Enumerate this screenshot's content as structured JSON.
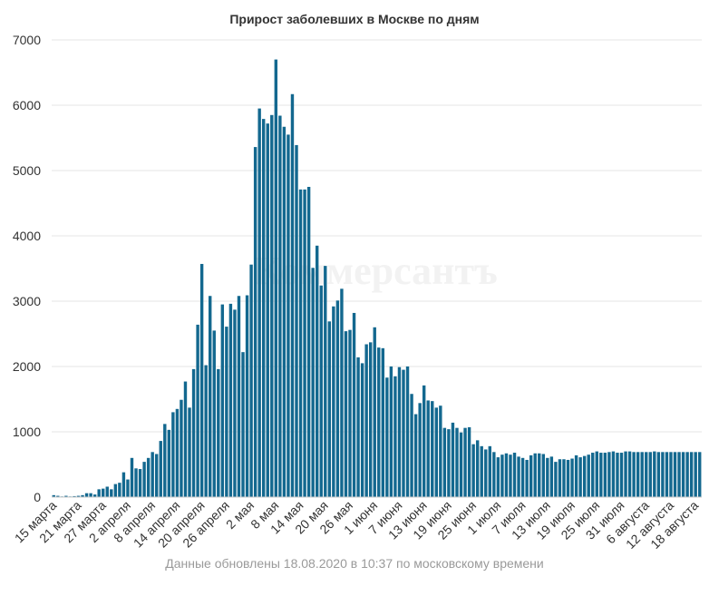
{
  "chart_data": {
    "type": "bar",
    "title": "Прирост заболевших в Москве по дням",
    "footnote": "Данные обновлены 18.08.2020 в 10:37 по московскому времени",
    "watermark": "Коммерсантъ",
    "start_date": "2020-03-15",
    "ylim": [
      0,
      7000
    ],
    "yticks": [
      0,
      1000,
      2000,
      3000,
      4000,
      5000,
      6000,
      7000
    ],
    "ytick_labels": [
      "0",
      "1000",
      "2000",
      "3000",
      "4000",
      "5000",
      "6000",
      "7000"
    ],
    "grid": true,
    "xtick_labels": [
      "15 марта",
      "21 марта",
      "27 марта",
      "2 апреля",
      "8 апреля",
      "14 апреля",
      "20 апреля",
      "26 апреля",
      "2 мая",
      "8 мая",
      "14 мая",
      "20 мая",
      "26 мая",
      "1 июня",
      "7 июня",
      "13 июня",
      "19 июня",
      "25 июня",
      "1 июля",
      "7 июля",
      "13 июля",
      "19 июля",
      "25 июля",
      "31 июля",
      "6 августа",
      "12 августа",
      "18 августа"
    ],
    "values": [
      30,
      20,
      10,
      20,
      10,
      15,
      20,
      30,
      60,
      60,
      40,
      120,
      130,
      160,
      120,
      200,
      220,
      380,
      270,
      600,
      440,
      430,
      540,
      600,
      690,
      660,
      860,
      1120,
      1030,
      1300,
      1350,
      1490,
      1770,
      1370,
      1960,
      2640,
      3570,
      2020,
      3080,
      2550,
      1960,
      2950,
      2610,
      2960,
      2870,
      3080,
      2220,
      3090,
      3560,
      5360,
      5950,
      5790,
      5720,
      5850,
      6700,
      5840,
      5670,
      5550,
      6170,
      5390,
      4710,
      4710,
      4750,
      3510,
      3850,
      3240,
      3540,
      2690,
      2920,
      3010,
      3190,
      2540,
      2560,
      2820,
      2140,
      2050,
      2340,
      2370,
      2600,
      2290,
      2280,
      1830,
      2000,
      1850,
      1990,
      1950,
      2000,
      1580,
      1270,
      1440,
      1710,
      1480,
      1470,
      1370,
      1400,
      1060,
      1040,
      1140,
      1060,
      990,
      1060,
      1070,
      810,
      870,
      780,
      730,
      780,
      690,
      610,
      650,
      670,
      650,
      680,
      620,
      600,
      570,
      640,
      670,
      670,
      660,
      600,
      620,
      540,
      580,
      580,
      570,
      590,
      640,
      610,
      630,
      650,
      680,
      700,
      680,
      680,
      690,
      700,
      680,
      680,
      700,
      700,
      690,
      690,
      690,
      690,
      690,
      700,
      690,
      690,
      690,
      690,
      690,
      690,
      690,
      690,
      690,
      690,
      690
    ]
  }
}
